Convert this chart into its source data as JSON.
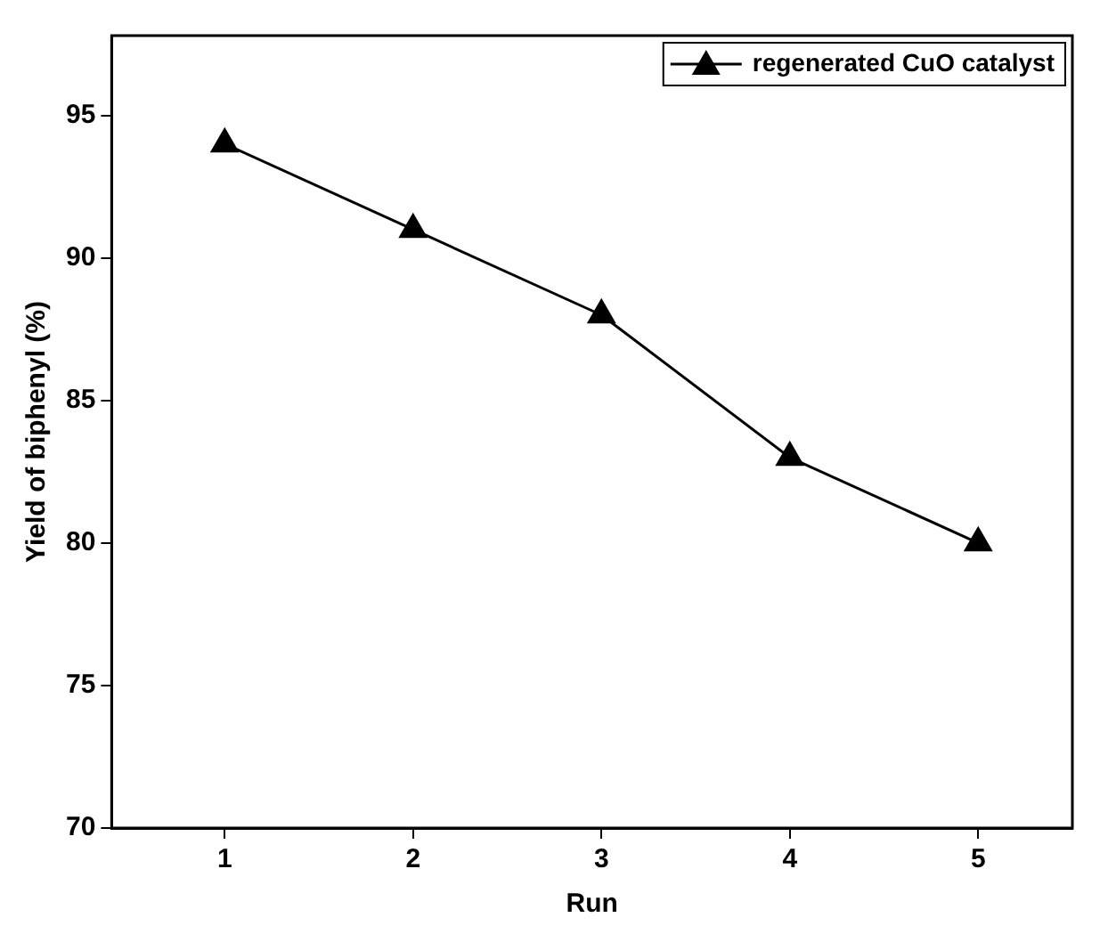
{
  "chart_data": {
    "type": "line",
    "xlabel": "Run",
    "ylabel": "Yield of biphenyl (%)",
    "x": [
      1,
      2,
      3,
      4,
      5
    ],
    "series": [
      {
        "name": "regenerated CuO catalyst",
        "color": "#000000",
        "values": [
          94,
          91,
          88,
          83,
          80
        ]
      }
    ],
    "xlim": [
      0.4,
      5.5
    ],
    "xticks": [
      1,
      2,
      3,
      4,
      5
    ],
    "ylim": [
      70,
      97.8
    ],
    "yticks": [
      70,
      75,
      80,
      85,
      90,
      95
    ],
    "grid": false,
    "legend": "top right",
    "marker": "triangle",
    "line_style": "solid"
  }
}
